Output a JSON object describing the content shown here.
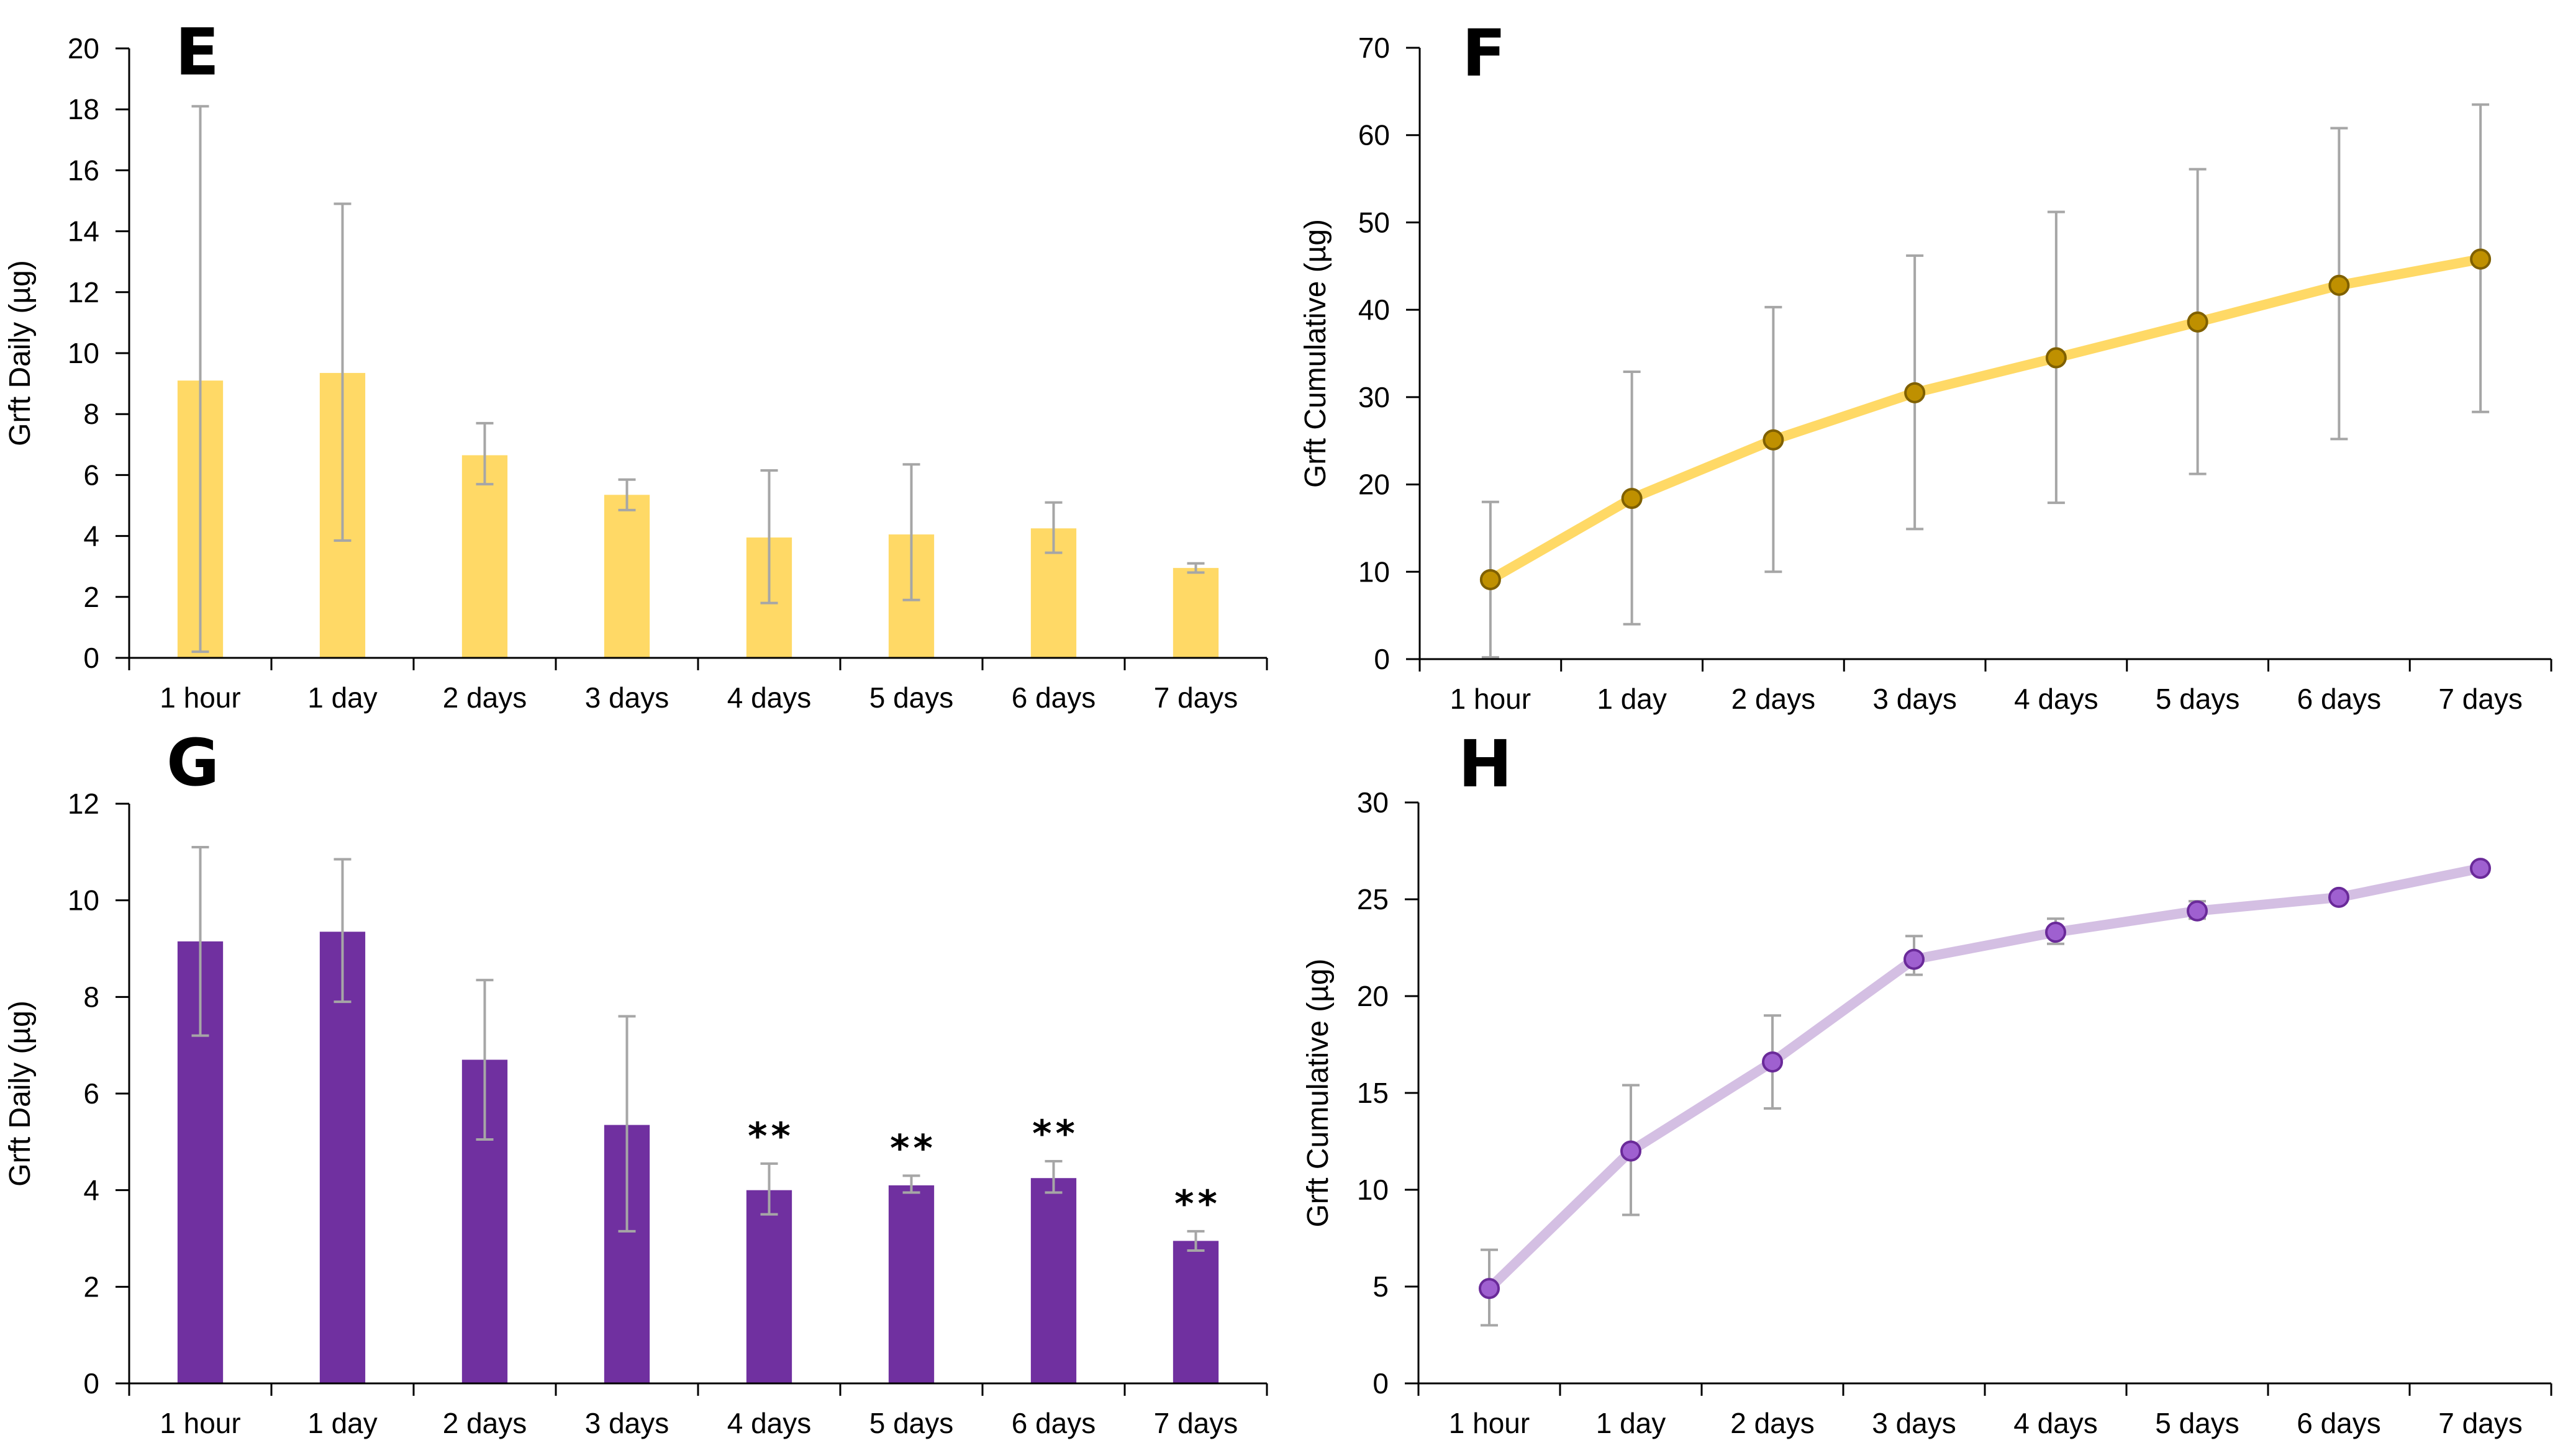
{
  "colors": {
    "yellow_bar": "#FFD966",
    "yellow_line": "#FFD966",
    "yellow_marker": "#BF9000",
    "yellow_marker_edge": "#7F6000",
    "purple_bar": "#7030A0",
    "purple_line": "#D4BFE3",
    "purple_marker": "#9F60D0",
    "purple_marker_edge": "#6A2A99",
    "error_bar": "#A6A6A6",
    "axis": "#000000"
  },
  "chart_data": [
    {
      "panel": "E",
      "type": "bar",
      "categories": [
        "1 hour",
        "1 day",
        "2 days",
        "3 days",
        "4 days",
        "5 days",
        "6 days",
        "7 days"
      ],
      "values": [
        9.1,
        9.35,
        6.65,
        5.35,
        3.95,
        4.05,
        4.25,
        2.95
      ],
      "error_low": [
        0.2,
        3.85,
        5.7,
        4.85,
        1.8,
        1.9,
        3.45,
        2.8
      ],
      "error_high": [
        18.1,
        14.9,
        7.7,
        5.85,
        6.15,
        6.35,
        5.1,
        3.1
      ],
      "annotations": [],
      "title": "",
      "xlabel": "",
      "ylabel": "Grft Daily (µg)",
      "ylim": [
        0,
        20
      ],
      "yticks": [
        "0",
        "2",
        "4",
        "6",
        "8",
        "10",
        "12",
        "14",
        "16",
        "18",
        "20"
      ],
      "grid": false
    },
    {
      "panel": "F",
      "type": "line",
      "categories": [
        "1 hour",
        "1 day",
        "2 days",
        "3 days",
        "4 days",
        "5 days",
        "6 days",
        "7 days"
      ],
      "values": [
        9.1,
        18.4,
        25.1,
        30.5,
        34.5,
        38.6,
        42.8,
        45.8
      ],
      "error_low": [
        0.2,
        4.0,
        10.0,
        14.9,
        17.9,
        21.2,
        25.2,
        28.3
      ],
      "error_high": [
        18.0,
        32.9,
        40.3,
        46.2,
        51.2,
        56.1,
        60.8,
        63.5
      ],
      "title": "",
      "xlabel": "",
      "ylabel": "Grft Cumulative (µg)",
      "ylim": [
        0,
        70
      ],
      "yticks": [
        "0",
        "10",
        "20",
        "30",
        "40",
        "50",
        "60",
        "70"
      ],
      "grid": false
    },
    {
      "panel": "G",
      "type": "bar",
      "categories": [
        "1 hour",
        "1 day",
        "2 days",
        "3 days",
        "4 days",
        "5 days",
        "6 days",
        "7 days"
      ],
      "values": [
        9.15,
        9.35,
        6.7,
        5.35,
        4.0,
        4.1,
        4.25,
        2.95
      ],
      "error_low": [
        7.2,
        7.9,
        5.05,
        3.15,
        3.5,
        3.95,
        3.95,
        2.75
      ],
      "error_high": [
        11.1,
        10.85,
        8.35,
        7.6,
        4.55,
        4.3,
        4.6,
        3.15
      ],
      "annotations": [
        "",
        "",
        "",
        "",
        "**",
        "**",
        "**",
        "**"
      ],
      "title": "",
      "xlabel": "",
      "ylabel": "Grft Daily (µg)",
      "ylim": [
        0,
        12
      ],
      "yticks": [
        "0",
        "2",
        "4",
        "6",
        "8",
        "10",
        "12"
      ],
      "grid": false
    },
    {
      "panel": "H",
      "type": "line",
      "categories": [
        "1 hour",
        "1 day",
        "2 days",
        "3 days",
        "4 days",
        "5 days",
        "6 days",
        "7 days"
      ],
      "values": [
        4.9,
        12.0,
        16.6,
        21.9,
        23.3,
        24.4,
        25.1,
        26.6
      ],
      "error_low": [
        3.0,
        8.7,
        14.2,
        21.1,
        22.7,
        24.0,
        25.1,
        26.6
      ],
      "error_high": [
        6.9,
        15.4,
        19.0,
        23.1,
        24.0,
        24.9,
        25.1,
        26.6
      ],
      "title": "",
      "xlabel": "",
      "ylabel": "Grft Cumulative (µg)",
      "ylim": [
        0,
        30
      ],
      "yticks": [
        "0",
        "5",
        "10",
        "15",
        "20",
        "25",
        "30"
      ],
      "grid": false
    }
  ]
}
